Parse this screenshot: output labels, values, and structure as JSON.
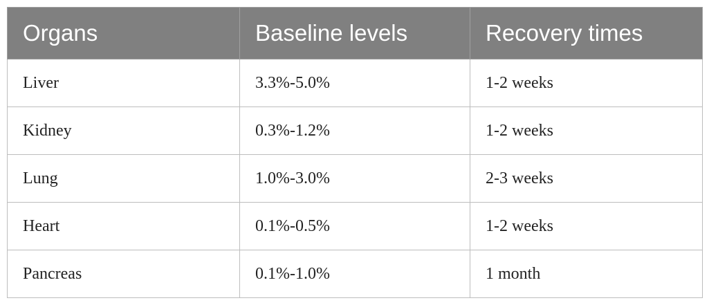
{
  "table": {
    "header": [
      "Organs",
      "Baseline levels",
      "Recovery times"
    ],
    "rows": [
      [
        "Liver",
        "3.3%-5.0%",
        "1-2 weeks"
      ],
      [
        "Kidney",
        "0.3%-1.2%",
        "1-2 weeks"
      ],
      [
        "Lung",
        "1.0%-3.0%",
        "2-3 weeks"
      ],
      [
        "Heart",
        "0.1%-0.5%",
        "1-2 weeks"
      ],
      [
        "Pancreas",
        "0.1%-1.0%",
        "1 month"
      ]
    ]
  }
}
